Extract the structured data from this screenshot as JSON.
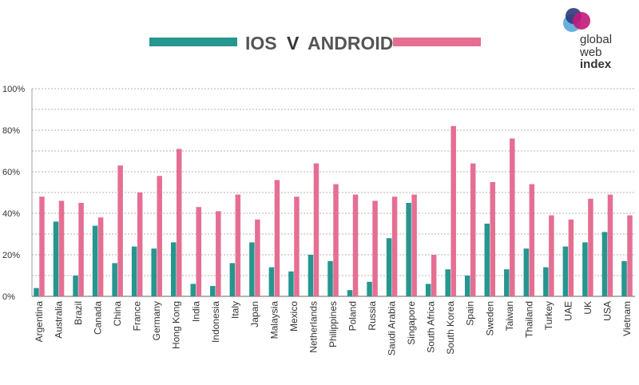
{
  "title": {
    "left": "IOS",
    "middle": "V",
    "right": "ANDROID"
  },
  "logo": {
    "line1": "global",
    "line2": "web",
    "line3": "index"
  },
  "colors": {
    "ios": "#26968F",
    "android": "#E56F93",
    "grid": "#9a9a9a"
  },
  "chart_data": {
    "type": "bar",
    "title": "IOS V ANDROID",
    "categories": [
      "Argentina",
      "Australia",
      "Brazil",
      "Canada",
      "China",
      "France",
      "Germany",
      "Hong Kong",
      "India",
      "Indonesia",
      "Italy",
      "Japan",
      "Malaysia",
      "Mexico",
      "Netherlands",
      "Philippines",
      "Poland",
      "Russia",
      "Saudi Arabia",
      "Singapore",
      "South Africa",
      "South Korea",
      "Spain",
      "Sweden",
      "Taiwan",
      "Thailand",
      "Turkey",
      "UAE",
      "UK",
      "USA",
      "Vietnam"
    ],
    "series": [
      {
        "name": "IOS",
        "values": [
          4,
          36,
          10,
          34,
          16,
          24,
          23,
          26,
          6,
          5,
          16,
          26,
          14,
          12,
          20,
          17,
          3,
          7,
          28,
          45,
          6,
          13,
          10,
          35,
          13,
          23,
          14,
          24,
          26,
          31,
          17
        ]
      },
      {
        "name": "ANDROID",
        "values": [
          48,
          46,
          45,
          38,
          63,
          50,
          58,
          71,
          43,
          41,
          49,
          37,
          56,
          48,
          64,
          54,
          49,
          46,
          48,
          49,
          20,
          82,
          64,
          55,
          76,
          54,
          39,
          37,
          47,
          49,
          39
        ]
      }
    ],
    "ylim": [
      0,
      100
    ],
    "y_ticks": [
      "0%",
      "20%",
      "40%",
      "60%",
      "80%",
      "100%"
    ],
    "grid": true,
    "legend": "top"
  }
}
